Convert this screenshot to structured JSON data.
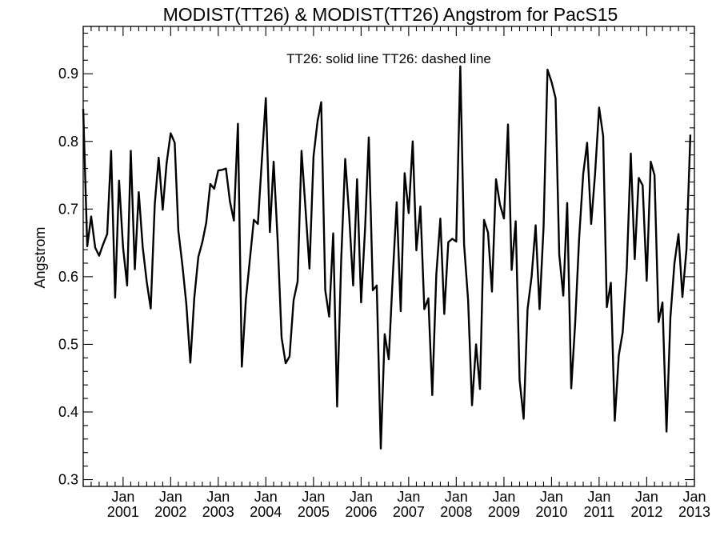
{
  "chart_data": {
    "type": "line",
    "title": "MODIST(TT26) & MODIST(TT26)  Angstrom for PacS15",
    "annotation": "TT26: solid line   TT26: dashed line",
    "ylabel": "Angstrom",
    "xlabel": "",
    "ylim": [
      0.29,
      0.97
    ],
    "yticks": [
      0.3,
      0.4,
      0.5,
      0.6,
      0.7,
      0.8,
      0.9
    ],
    "ytick_labels": [
      "0.3",
      "0.4",
      "0.5",
      "0.6",
      "0.7",
      "0.8",
      "0.9"
    ],
    "xlim": [
      "2000-03-01",
      "2013-01-01"
    ],
    "xticks": [
      {
        "date": "2001-01-01",
        "month": "Jan",
        "year": "2001"
      },
      {
        "date": "2002-01-01",
        "month": "Jan",
        "year": "2002"
      },
      {
        "date": "2003-01-01",
        "month": "Jan",
        "year": "2003"
      },
      {
        "date": "2004-01-01",
        "month": "Jan",
        "year": "2004"
      },
      {
        "date": "2005-01-01",
        "month": "Jan",
        "year": "2005"
      },
      {
        "date": "2006-01-01",
        "month": "Jan",
        "year": "2006"
      },
      {
        "date": "2007-01-01",
        "month": "Jan",
        "year": "2007"
      },
      {
        "date": "2008-01-01",
        "month": "Jan",
        "year": "2008"
      },
      {
        "date": "2009-01-01",
        "month": "Jan",
        "year": "2009"
      },
      {
        "date": "2010-01-01",
        "month": "Jan",
        "year": "2010"
      },
      {
        "date": "2011-01-01",
        "month": "Jan",
        "year": "2011"
      },
      {
        "date": "2012-01-01",
        "month": "Jan",
        "year": "2012"
      },
      {
        "date": "2013-01-01",
        "month": "Jan",
        "year": "2013"
      }
    ],
    "grid": false,
    "series": [
      {
        "style": "solid",
        "color": "#000000",
        "points": [
          [
            "2000-03-01",
            0.848
          ],
          [
            "2000-04-01",
            0.645
          ],
          [
            "2000-05-01",
            0.689
          ],
          [
            "2000-06-01",
            0.643
          ],
          [
            "2000-07-01",
            0.631
          ],
          [
            "2000-08-01",
            0.648
          ],
          [
            "2000-09-01",
            0.663
          ],
          [
            "2000-10-01",
            0.786
          ],
          [
            "2000-11-01",
            0.569
          ],
          [
            "2000-12-01",
            0.742
          ],
          [
            "2001-01-01",
            0.643
          ],
          [
            "2001-02-01",
            0.587
          ],
          [
            "2001-03-01",
            0.786
          ],
          [
            "2001-04-01",
            0.611
          ],
          [
            "2001-05-01",
            0.725
          ],
          [
            "2001-06-01",
            0.643
          ],
          [
            "2001-07-01",
            0.593
          ],
          [
            "2001-08-01",
            0.553
          ],
          [
            "2001-09-01",
            0.707
          ],
          [
            "2001-10-01",
            0.776
          ],
          [
            "2001-11-01",
            0.699
          ],
          [
            "2001-12-01",
            0.768
          ],
          [
            "2002-01-01",
            0.812
          ],
          [
            "2002-02-01",
            0.798
          ],
          [
            "2002-03-01",
            0.668
          ],
          [
            "2002-04-01",
            0.617
          ],
          [
            "2002-05-01",
            0.56
          ],
          [
            "2002-06-01",
            0.473
          ],
          [
            "2002-07-01",
            0.568
          ],
          [
            "2002-08-01",
            0.629
          ],
          [
            "2002-09-01",
            0.651
          ],
          [
            "2002-10-01",
            0.68
          ],
          [
            "2002-11-01",
            0.737
          ],
          [
            "2002-12-01",
            0.73
          ],
          [
            "2003-01-01",
            0.757
          ],
          [
            "2003-02-01",
            0.758
          ],
          [
            "2003-03-01",
            0.76
          ],
          [
            "2003-04-01",
            0.711
          ],
          [
            "2003-05-01",
            0.683
          ],
          [
            "2003-06-01",
            0.826
          ],
          [
            "2003-07-01",
            0.467
          ],
          [
            "2003-08-01",
            0.566
          ],
          [
            "2003-09-01",
            0.626
          ],
          [
            "2003-10-01",
            0.684
          ],
          [
            "2003-11-01",
            0.678
          ],
          [
            "2003-12-01",
            0.77
          ],
          [
            "2004-01-01",
            0.864
          ],
          [
            "2004-02-01",
            0.666
          ],
          [
            "2004-03-01",
            0.77
          ],
          [
            "2004-04-01",
            0.653
          ],
          [
            "2004-05-01",
            0.51
          ],
          [
            "2004-06-01",
            0.472
          ],
          [
            "2004-07-01",
            0.482
          ],
          [
            "2004-08-01",
            0.565
          ],
          [
            "2004-09-01",
            0.593
          ],
          [
            "2004-10-01",
            0.786
          ],
          [
            "2004-11-01",
            0.699
          ],
          [
            "2004-12-01",
            0.612
          ],
          [
            "2005-01-01",
            0.778
          ],
          [
            "2005-02-01",
            0.83
          ],
          [
            "2005-03-01",
            0.858
          ],
          [
            "2005-04-01",
            0.58
          ],
          [
            "2005-05-01",
            0.541
          ],
          [
            "2005-06-01",
            0.664
          ],
          [
            "2005-07-01",
            0.408
          ],
          [
            "2005-08-01",
            0.623
          ],
          [
            "2005-09-01",
            0.774
          ],
          [
            "2005-10-01",
            0.692
          ],
          [
            "2005-11-01",
            0.587
          ],
          [
            "2005-12-01",
            0.744
          ],
          [
            "2006-01-01",
            0.562
          ],
          [
            "2006-02-01",
            0.673
          ],
          [
            "2006-03-01",
            0.806
          ],
          [
            "2006-04-01",
            0.58
          ],
          [
            "2006-05-01",
            0.587
          ],
          [
            "2006-06-01",
            0.346
          ],
          [
            "2006-07-01",
            0.515
          ],
          [
            "2006-08-01",
            0.478
          ],
          [
            "2006-09-01",
            0.601
          ],
          [
            "2006-10-01",
            0.71
          ],
          [
            "2006-11-01",
            0.549
          ],
          [
            "2006-12-01",
            0.753
          ],
          [
            "2007-01-01",
            0.694
          ],
          [
            "2007-02-01",
            0.8
          ],
          [
            "2007-03-01",
            0.639
          ],
          [
            "2007-04-01",
            0.704
          ],
          [
            "2007-05-01",
            0.552
          ],
          [
            "2007-06-01",
            0.568
          ],
          [
            "2007-07-01",
            0.425
          ],
          [
            "2007-08-01",
            0.603
          ],
          [
            "2007-09-01",
            0.686
          ],
          [
            "2007-10-01",
            0.545
          ],
          [
            "2007-11-01",
            0.651
          ],
          [
            "2007-12-01",
            0.656
          ],
          [
            "2008-01-01",
            0.652
          ],
          [
            "2008-02-01",
            0.911
          ],
          [
            "2008-03-01",
            0.648
          ],
          [
            "2008-04-01",
            0.565
          ],
          [
            "2008-05-01",
            0.41
          ],
          [
            "2008-06-01",
            0.5
          ],
          [
            "2008-07-01",
            0.434
          ],
          [
            "2008-08-01",
            0.684
          ],
          [
            "2008-09-01",
            0.665
          ],
          [
            "2008-10-01",
            0.578
          ],
          [
            "2008-11-01",
            0.744
          ],
          [
            "2008-12-01",
            0.707
          ],
          [
            "2009-01-01",
            0.686
          ],
          [
            "2009-02-01",
            0.825
          ],
          [
            "2009-03-01",
            0.61
          ],
          [
            "2009-04-01",
            0.682
          ],
          [
            "2009-05-01",
            0.447
          ],
          [
            "2009-06-01",
            0.39
          ],
          [
            "2009-07-01",
            0.552
          ],
          [
            "2009-08-01",
            0.6
          ],
          [
            "2009-09-01",
            0.676
          ],
          [
            "2009-10-01",
            0.552
          ],
          [
            "2009-11-01",
            0.674
          ],
          [
            "2009-12-01",
            0.906
          ],
          [
            "2010-01-01",
            0.888
          ],
          [
            "2010-02-01",
            0.864
          ],
          [
            "2010-03-01",
            0.633
          ],
          [
            "2010-04-01",
            0.572
          ],
          [
            "2010-05-01",
            0.709
          ],
          [
            "2010-06-01",
            0.435
          ],
          [
            "2010-07-01",
            0.53
          ],
          [
            "2010-08-01",
            0.658
          ],
          [
            "2010-09-01",
            0.752
          ],
          [
            "2010-10-01",
            0.798
          ],
          [
            "2010-11-01",
            0.678
          ],
          [
            "2010-12-01",
            0.752
          ],
          [
            "2011-01-01",
            0.85
          ],
          [
            "2011-02-01",
            0.808
          ],
          [
            "2011-03-01",
            0.555
          ],
          [
            "2011-04-01",
            0.591
          ],
          [
            "2011-05-01",
            0.387
          ],
          [
            "2011-06-01",
            0.484
          ],
          [
            "2011-07-01",
            0.518
          ],
          [
            "2011-08-01",
            0.612
          ],
          [
            "2011-09-01",
            0.782
          ],
          [
            "2011-10-01",
            0.626
          ],
          [
            "2011-11-01",
            0.746
          ],
          [
            "2011-12-01",
            0.735
          ],
          [
            "2012-01-01",
            0.594
          ],
          [
            "2012-02-01",
            0.77
          ],
          [
            "2012-03-01",
            0.75
          ],
          [
            "2012-04-01",
            0.533
          ],
          [
            "2012-05-01",
            0.562
          ],
          [
            "2012-06-01",
            0.371
          ],
          [
            "2012-07-01",
            0.54
          ],
          [
            "2012-08-01",
            0.62
          ],
          [
            "2012-09-01",
            0.663
          ],
          [
            "2012-10-01",
            0.57
          ],
          [
            "2012-11-01",
            0.64
          ],
          [
            "2012-12-01",
            0.81
          ]
        ]
      }
    ]
  }
}
